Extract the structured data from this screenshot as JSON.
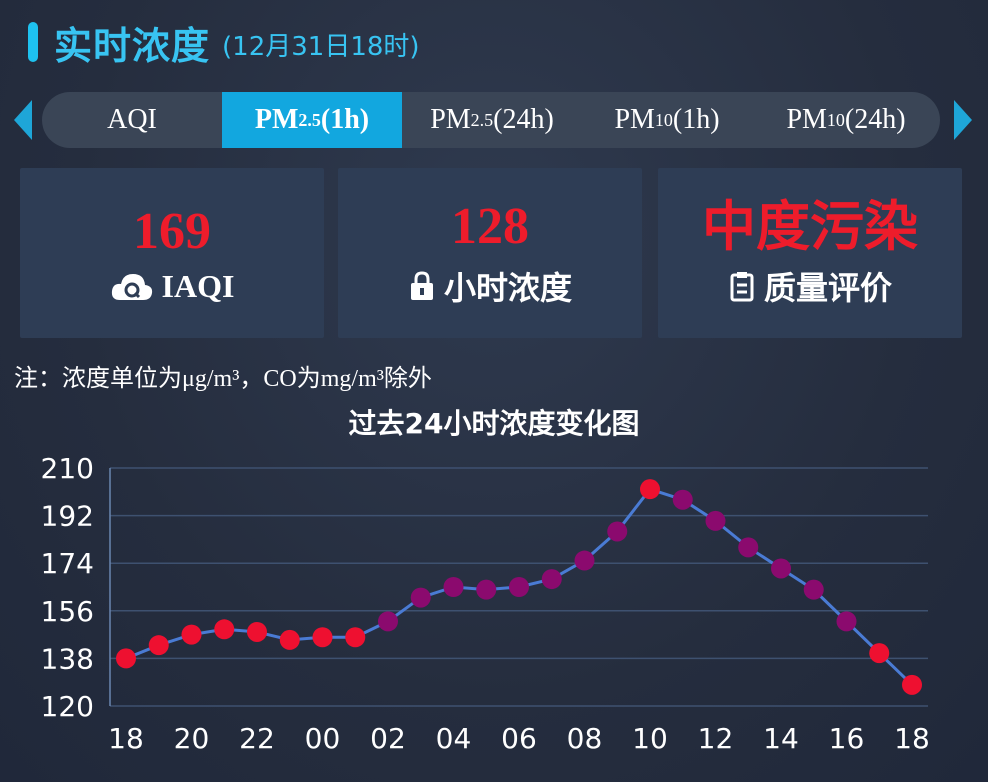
{
  "header": {
    "title": "实时浓度",
    "time": "(12月31日18时)"
  },
  "tabs": [
    {
      "main": "AQI",
      "sub": "",
      "suffix": "",
      "active": false
    },
    {
      "main": "PM",
      "sub": "2.5",
      "suffix": "(1h)",
      "active": true
    },
    {
      "main": "PM",
      "sub": "2.5",
      "suffix": "(24h)",
      "active": false
    },
    {
      "main": "PM",
      "sub": "10",
      "suffix": "(1h)",
      "active": false
    },
    {
      "main": "PM",
      "sub": "10",
      "suffix": "(24h)",
      "active": false
    }
  ],
  "cards": {
    "iaqi": {
      "value": "169",
      "label": "IAQI",
      "icon": "cloud-q-icon"
    },
    "hourly": {
      "value": "128",
      "label": "小时浓度",
      "icon": "lock-icon"
    },
    "quality": {
      "value": "中度污染",
      "label": "质量评价",
      "icon": "clipboard-icon"
    }
  },
  "note": "注：浓度单位为μg/m³，CO为mg/m³除外",
  "colors": {
    "accent": "#1ec2f0",
    "active_tab": "#12a7df",
    "value_red": "#ee1c2b",
    "line": "#4a7bd4",
    "point_red": "#ee1030",
    "point_purple": "#8b0a6e"
  },
  "chart_data": {
    "type": "line",
    "title": "过去24小时浓度变化图",
    "xlabel": "",
    "ylabel": "",
    "ylim": [
      120,
      210
    ],
    "yticks": [
      120,
      138,
      156,
      174,
      192,
      210
    ],
    "xtick_labels": [
      "18",
      "20",
      "22",
      "00",
      "02",
      "04",
      "06",
      "08",
      "10",
      "12",
      "14",
      "16",
      "18"
    ],
    "x": [
      "18",
      "19",
      "20",
      "21",
      "22",
      "23",
      "00",
      "01",
      "02",
      "03",
      "04",
      "05",
      "06",
      "07",
      "08",
      "09",
      "10",
      "11",
      "12",
      "13",
      "14",
      "15",
      "16",
      "17",
      "18"
    ],
    "values": [
      138,
      143,
      147,
      149,
      148,
      145,
      146,
      146,
      152,
      161,
      165,
      164,
      165,
      168,
      175,
      186,
      202,
      198,
      190,
      180,
      172,
      164,
      152,
      140,
      128
    ],
    "point_colors": [
      "red",
      "red",
      "red",
      "red",
      "red",
      "red",
      "red",
      "red",
      "purple",
      "purple",
      "purple",
      "purple",
      "purple",
      "purple",
      "purple",
      "purple",
      "red",
      "purple",
      "purple",
      "purple",
      "purple",
      "purple",
      "purple",
      "red",
      "red"
    ],
    "grid": true
  }
}
